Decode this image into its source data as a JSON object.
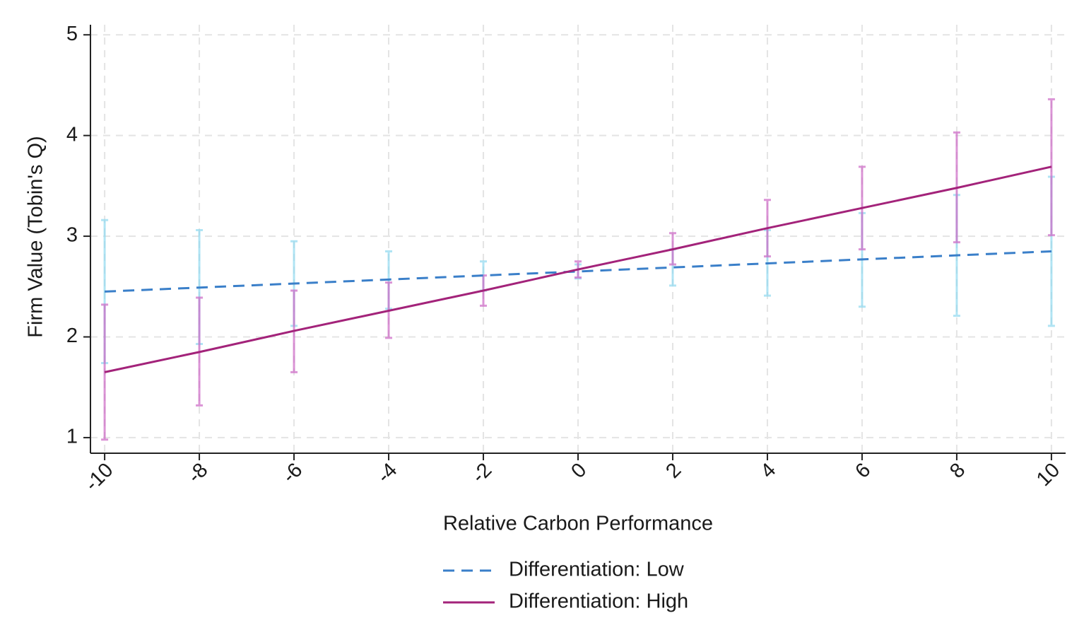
{
  "chart_data": {
    "type": "line",
    "x_label": "Relative Carbon Performance",
    "y_label": "Firm Value (Tobin's Q)",
    "x": [
      -10,
      -8,
      -6,
      -4,
      -2,
      0,
      2,
      4,
      6,
      8,
      10
    ],
    "xlim": [
      -10.3,
      10.3
    ],
    "xticks": [
      -10,
      -8,
      -6,
      -4,
      -2,
      0,
      2,
      4,
      6,
      8,
      10
    ],
    "ylim": [
      0.845,
      5.1
    ],
    "yticks": [
      1,
      2,
      3,
      4,
      5
    ],
    "grid": true,
    "legend": "bottom",
    "series": [
      {
        "name": "Differentiation: Low",
        "color": "#3a7fc9",
        "dashed": true,
        "ci_color": "#8fd8ef",
        "values": [
          2.45,
          2.49,
          2.53,
          2.57,
          2.61,
          2.65,
          2.69,
          2.73,
          2.77,
          2.81,
          2.85
        ],
        "lower": [
          1.74,
          1.93,
          2.11,
          2.28,
          2.46,
          2.58,
          2.51,
          2.41,
          2.3,
          2.21,
          2.11
        ],
        "upper": [
          3.16,
          3.06,
          2.95,
          2.85,
          2.75,
          2.72,
          2.87,
          3.06,
          3.23,
          3.41,
          3.59
        ]
      },
      {
        "name": "Differentiation: High",
        "color": "#a3237a",
        "dashed": false,
        "ci_color": "#cc66c4",
        "values": [
          1.65,
          1.85,
          2.06,
          2.26,
          2.46,
          2.67,
          2.87,
          3.08,
          3.28,
          3.48,
          3.69
        ],
        "lower": [
          0.98,
          1.32,
          1.65,
          1.99,
          2.31,
          2.59,
          2.72,
          2.8,
          2.87,
          2.94,
          3.01
        ],
        "upper": [
          2.32,
          2.39,
          2.46,
          2.54,
          2.61,
          2.75,
          3.03,
          3.36,
          3.69,
          4.03,
          4.36
        ]
      }
    ]
  }
}
